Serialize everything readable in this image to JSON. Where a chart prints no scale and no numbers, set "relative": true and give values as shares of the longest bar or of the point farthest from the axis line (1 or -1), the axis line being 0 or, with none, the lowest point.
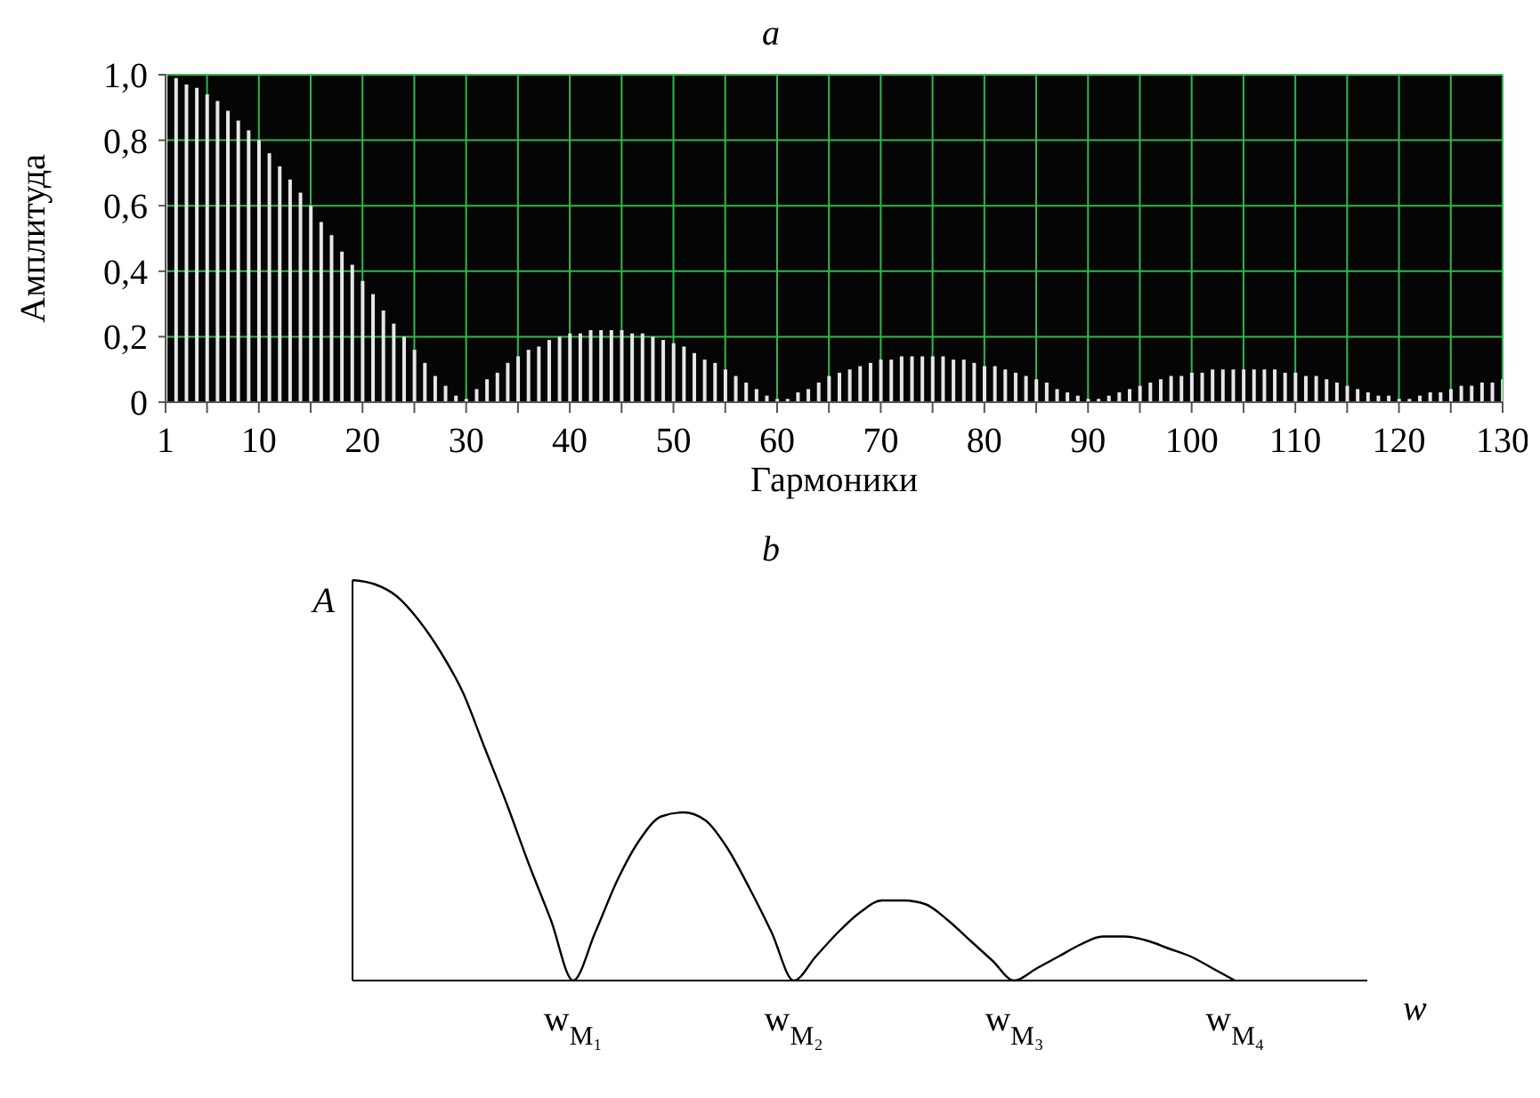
{
  "chart_data": [
    {
      "type": "bar",
      "title": "a",
      "xlabel": "Гармоники",
      "ylabel": "Амплитуда",
      "color": "#e6e6e6",
      "grid": true,
      "x": [
        1,
        2,
        3,
        4,
        5,
        6,
        7,
        8,
        9,
        10,
        11,
        12,
        13,
        14,
        15,
        16,
        17,
        18,
        19,
        20,
        21,
        22,
        23,
        24,
        25,
        26,
        27,
        28,
        29,
        30,
        31,
        32,
        33,
        34,
        35,
        36,
        37,
        38,
        39,
        40,
        41,
        42,
        43,
        44,
        45,
        46,
        47,
        48,
        49,
        50,
        51,
        52,
        53,
        54,
        55,
        56,
        57,
        58,
        59,
        60,
        61,
        62,
        63,
        64,
        65,
        66,
        67,
        68,
        69,
        70,
        71,
        72,
        73,
        74,
        75,
        76,
        77,
        78,
        79,
        80,
        81,
        82,
        83,
        84,
        85,
        86,
        87,
        88,
        89,
        90,
        91,
        92,
        93,
        94,
        95,
        96,
        97,
        98,
        99,
        100,
        101,
        102,
        103,
        104,
        105,
        106,
        107,
        108,
        109,
        110,
        111,
        112,
        113,
        114,
        115,
        116,
        117,
        118,
        119,
        120,
        121,
        122,
        123,
        124,
        125,
        126,
        127,
        128,
        129,
        130
      ],
      "values": [
        1.0,
        0.99,
        0.97,
        0.96,
        0.94,
        0.92,
        0.89,
        0.86,
        0.83,
        0.8,
        0.76,
        0.72,
        0.68,
        0.64,
        0.6,
        0.55,
        0.51,
        0.46,
        0.42,
        0.37,
        0.33,
        0.28,
        0.24,
        0.2,
        0.16,
        0.12,
        0.08,
        0.05,
        0.02,
        0.01,
        0.04,
        0.07,
        0.09,
        0.12,
        0.14,
        0.16,
        0.17,
        0.19,
        0.2,
        0.21,
        0.21,
        0.22,
        0.22,
        0.22,
        0.22,
        0.21,
        0.21,
        0.2,
        0.19,
        0.18,
        0.17,
        0.15,
        0.13,
        0.12,
        0.1,
        0.08,
        0.06,
        0.04,
        0.02,
        0.01,
        0.01,
        0.03,
        0.04,
        0.06,
        0.08,
        0.09,
        0.1,
        0.11,
        0.12,
        0.13,
        0.13,
        0.14,
        0.14,
        0.14,
        0.14,
        0.14,
        0.13,
        0.13,
        0.12,
        0.11,
        0.11,
        0.1,
        0.09,
        0.08,
        0.07,
        0.06,
        0.04,
        0.03,
        0.02,
        0.01,
        0.01,
        0.02,
        0.03,
        0.04,
        0.05,
        0.06,
        0.07,
        0.08,
        0.08,
        0.09,
        0.09,
        0.1,
        0.1,
        0.1,
        0.1,
        0.1,
        0.1,
        0.1,
        0.09,
        0.09,
        0.08,
        0.08,
        0.07,
        0.06,
        0.05,
        0.04,
        0.03,
        0.02,
        0.02,
        0.01,
        0.01,
        0.02,
        0.03,
        0.03,
        0.04,
        0.05,
        0.05,
        0.06,
        0.06,
        0.07
      ],
      "xlim": [
        1,
        130
      ],
      "xticks": [
        1,
        {
          "value": 5,
          "label": null
        },
        10,
        {
          "value": 15,
          "label": null
        },
        20,
        {
          "value": 25,
          "label": null
        },
        30,
        {
          "value": 35,
          "label": null
        },
        40,
        {
          "value": 45,
          "label": null
        },
        50,
        {
          "value": 55,
          "label": null
        },
        60,
        {
          "value": 65,
          "label": null
        },
        70,
        {
          "value": 75,
          "label": null
        },
        80,
        {
          "value": 85,
          "label": null
        },
        90,
        {
          "value": 95,
          "label": null
        },
        100,
        {
          "value": 105,
          "label": null
        },
        110,
        {
          "value": 115,
          "label": null
        },
        120,
        {
          "value": 125,
          "label": null
        },
        130
      ],
      "ylim": [
        0,
        1
      ],
      "yticks": [
        0,
        {
          "value": 0.2,
          "label": "0,2"
        },
        {
          "value": 0.4,
          "label": "0,4"
        },
        {
          "value": 0.6,
          "label": "0,6"
        },
        {
          "value": 0.8,
          "label": "0,8"
        },
        {
          "value": 1,
          "label": "1,0"
        }
      ]
    },
    {
      "type": "line",
      "title": "b",
      "xlabel": "w",
      "ylabel": "A",
      "relative": true,
      "color": "#000000",
      "tick_labels": "x",
      "categories": [
        null,
        null,
        null,
        null,
        null,
        null,
        null,
        null,
        null,
        null,
        "w$_{M₁}$",
        null,
        null,
        null,
        null,
        null,
        null,
        null,
        null,
        null,
        "w$_{M₂}$",
        null,
        null,
        null,
        null,
        null,
        null,
        null,
        null,
        null,
        "w$_{M₃}$",
        null,
        null,
        null,
        null,
        null,
        null,
        null,
        null,
        null,
        "w$_{M₄}$",
        null,
        null,
        null,
        null,
        null,
        null
      ],
      "values": [
        1,
        0.99,
        0.96,
        0.9,
        0.82,
        0.72,
        0.58,
        0.44,
        0.29,
        0.15,
        0,
        0.12,
        0.25,
        0.35,
        0.41,
        0.42,
        0.4,
        0.33,
        0.23,
        0.12,
        0,
        0.06,
        0.12,
        0.17,
        0.2,
        0.2,
        0.19,
        0.15,
        0.1,
        0.05,
        0,
        0.03,
        0.06,
        0.09,
        0.11,
        0.11,
        0.1,
        0.08,
        0.06,
        0.03,
        0,
        null,
        null,
        null,
        null,
        null,
        null
      ]
    }
  ]
}
